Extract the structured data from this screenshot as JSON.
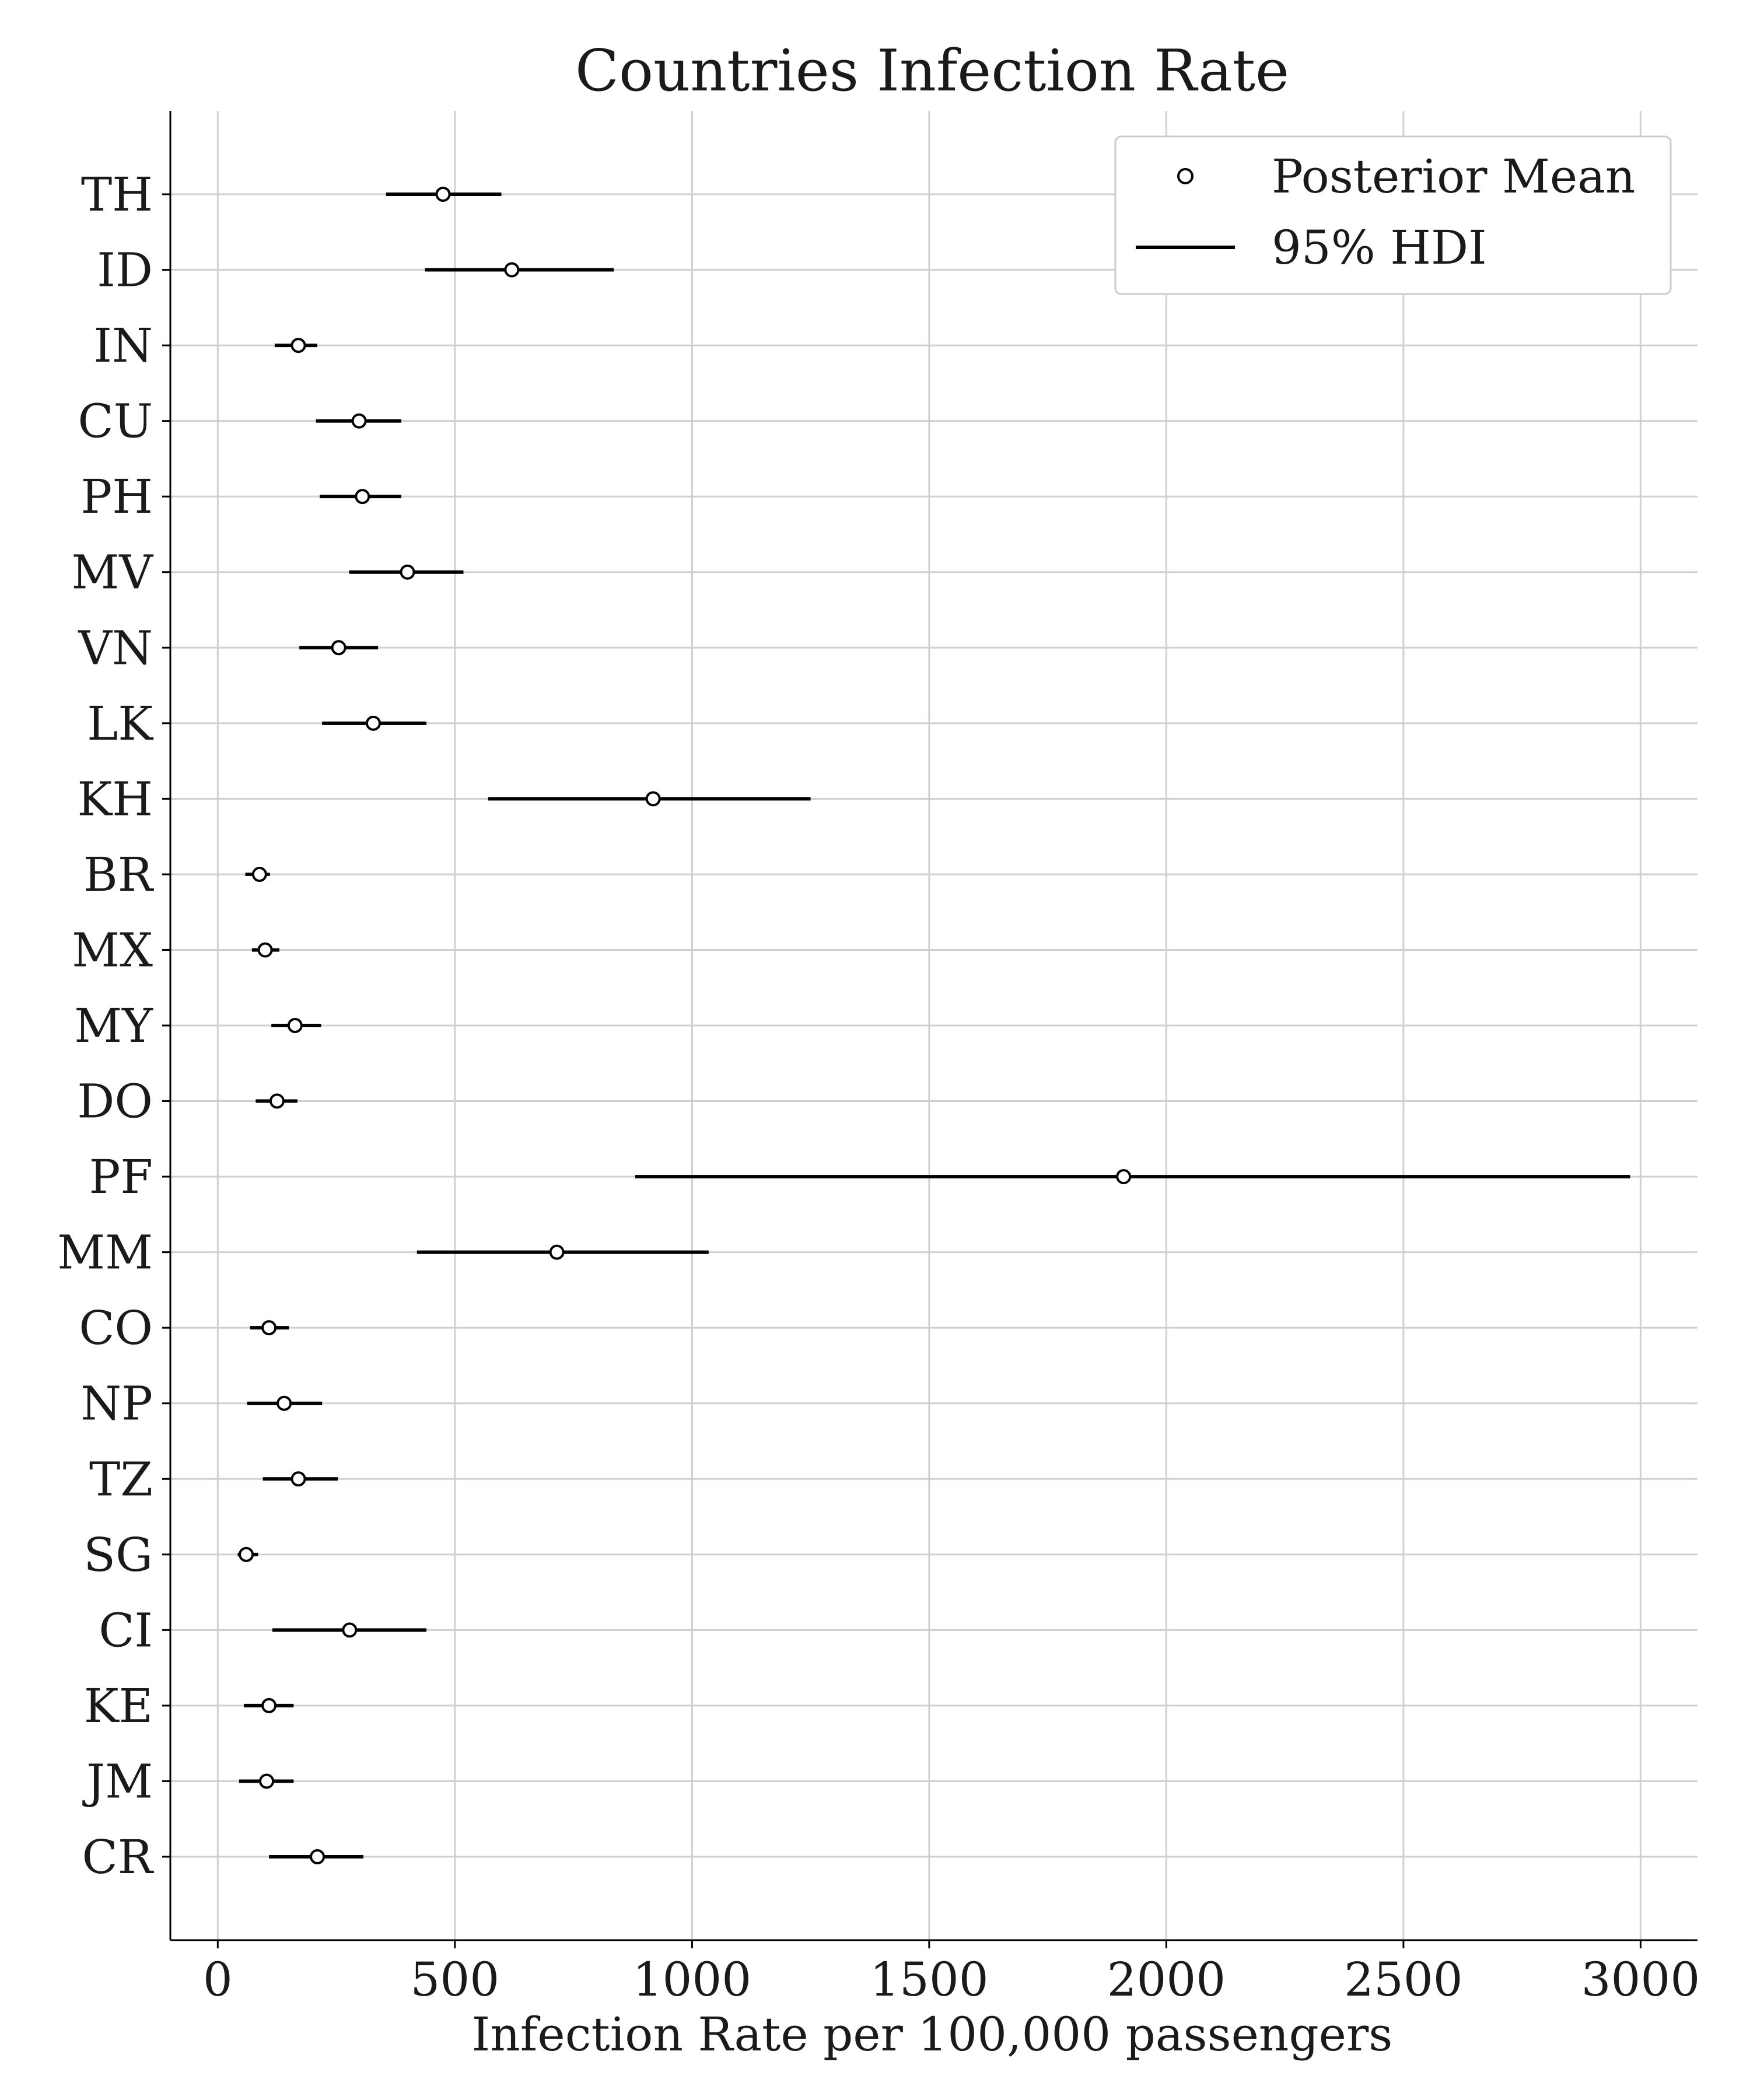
{
  "chart_data": {
    "type": "forest",
    "title": "Countries Infection Rate",
    "xlabel": "Infection Rate per 100,000 passengers",
    "ylabel": "",
    "xlim": [
      -100,
      3120
    ],
    "xticks": [
      0,
      500,
      1000,
      1500,
      2000,
      2500,
      3000
    ],
    "xtick_labels": [
      "0",
      "500",
      "1000",
      "1500",
      "2000",
      "2500",
      "3000"
    ],
    "grid": true,
    "legend": {
      "placement": "top-right",
      "entries": [
        {
          "label": "Posterior Mean",
          "marker": "open-circle"
        },
        {
          "label": "95% HDI",
          "marker": "line"
        }
      ]
    },
    "categories": [
      "TH",
      "ID",
      "IN",
      "CU",
      "PH",
      "MV",
      "VN",
      "LK",
      "KH",
      "BR",
      "MX",
      "MY",
      "DO",
      "PF",
      "MM",
      "CO",
      "NP",
      "TZ",
      "SG",
      "CI",
      "KE",
      "JM",
      "CR"
    ],
    "series": [
      {
        "name": "Posterior Mean",
        "values": [
          475,
          620,
          170,
          298,
          305,
          400,
          255,
          328,
          918,
          88,
          100,
          163,
          125,
          1910,
          715,
          108,
          140,
          170,
          60,
          278,
          108,
          103,
          210
        ]
      },
      {
        "name": "95% HDI",
        "low": [
          355,
          437,
          120,
          207,
          215,
          277,
          172,
          220,
          570,
          58,
          72,
          113,
          80,
          880,
          420,
          68,
          62,
          95,
          42,
          115,
          55,
          45,
          108
        ],
        "high": [
          598,
          835,
          210,
          387,
          387,
          518,
          338,
          440,
          1250,
          110,
          130,
          218,
          168,
          2978,
          1035,
          150,
          220,
          253,
          85,
          440,
          160,
          160,
          307
        ]
      }
    ],
    "colors": {
      "marker_edge": "#000000",
      "marker_fill": "#ffffff",
      "interval": "#000000",
      "grid": "#d0d0d0",
      "axis": "#000000",
      "legend_border": "#cccccc"
    }
  }
}
